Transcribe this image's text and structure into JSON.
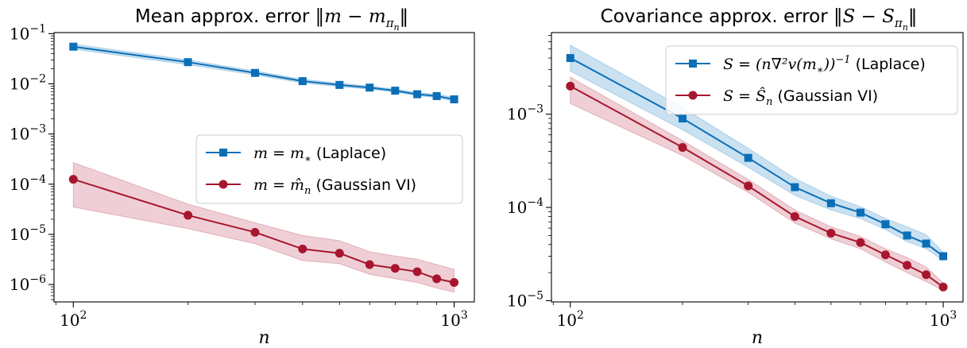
{
  "chart_data": [
    {
      "type": "line",
      "title_prefix": "Mean approx. error",
      "title_math": "‖m − m",
      "title_sub": "π",
      "title_subsub": "n",
      "title_close": "‖",
      "xlabel": "n",
      "xscale": "log",
      "yscale": "log",
      "xlim": [
        89,
        1130
      ],
      "ylim": [
        4.5e-07,
        0.105
      ],
      "x_tick_labels": [
        {
          "base": "10",
          "exp": "2"
        },
        {
          "base": "10",
          "exp": "3"
        }
      ],
      "y_tick_labels": [
        {
          "base": "10",
          "exp": "−6"
        },
        {
          "base": "10",
          "exp": "−5"
        },
        {
          "base": "10",
          "exp": "−4"
        },
        {
          "base": "10",
          "exp": "−3"
        },
        {
          "base": "10",
          "exp": "−2"
        },
        {
          "base": "10",
          "exp": "−1"
        }
      ],
      "legend_position": "center-right",
      "x": [
        100,
        200,
        300,
        400,
        500,
        600,
        700,
        800,
        900,
        1000
      ],
      "series": [
        {
          "name_math": "m = m",
          "name_sub": "∗",
          "name_text": " (Laplace)",
          "color": "#0b6fb8",
          "band_color": "#9ec8e8",
          "marker": "square",
          "values": [
            0.055,
            0.027,
            0.0165,
            0.0113,
            0.0095,
            0.0084,
            0.0073,
            0.0062,
            0.0057,
            0.0049
          ],
          "lower": [
            0.049,
            0.024,
            0.015,
            0.0104,
            0.0088,
            0.0078,
            0.0068,
            0.0058,
            0.0053,
            0.0045
          ],
          "upper": [
            0.062,
            0.03,
            0.018,
            0.0123,
            0.0103,
            0.009,
            0.0078,
            0.0067,
            0.0062,
            0.0054
          ]
        },
        {
          "name_math": "m = m̂",
          "name_sub": "n",
          "name_text": " (Gaussian VI)",
          "color": "#a7162e",
          "band_color": "#e2a8b2",
          "marker": "circle",
          "values": [
            0.000125,
            2.4e-05,
            1.1e-05,
            5.1e-06,
            4.2e-06,
            2.5e-06,
            2.1e-06,
            1.8e-06,
            1.3e-06,
            1.1e-06
          ],
          "lower": [
            3.5e-05,
            1.3e-05,
            6.5e-06,
            3e-06,
            2.6e-06,
            1.6e-06,
            1.3e-06,
            1.1e-06,
            8.5e-07,
            7e-07
          ],
          "upper": [
            0.00027,
            4e-05,
            1.7e-05,
            9.5e-06,
            7.5e-06,
            4.5e-06,
            3.7e-06,
            3.2e-06,
            2.5e-06,
            2e-06
          ]
        }
      ]
    },
    {
      "type": "line",
      "title_prefix": "Covariance approx. error",
      "title_math": "‖S − S",
      "title_sub": "π",
      "title_subsub": "n",
      "title_close": "‖",
      "xlabel": "n",
      "xscale": "log",
      "yscale": "log",
      "xlim": [
        89,
        1130
      ],
      "ylim": [
        9.7e-06,
        0.0075
      ],
      "x_tick_labels": [
        {
          "base": "10",
          "exp": "2"
        },
        {
          "base": "10",
          "exp": "3"
        }
      ],
      "y_tick_labels": [
        {
          "base": "10",
          "exp": "−5"
        },
        {
          "base": "10",
          "exp": "−4"
        },
        {
          "base": "10",
          "exp": "−3"
        }
      ],
      "legend_position": "top-right",
      "x": [
        100,
        200,
        300,
        400,
        500,
        600,
        700,
        800,
        900,
        1000
      ],
      "series": [
        {
          "name_math": "S = (n∇²v(m",
          "name_sub": "∗",
          "name_math_close": "))",
          "name_sup": "−1",
          "name_text": " (Laplace)",
          "color": "#0b6fb8",
          "band_color": "#9ec8e8",
          "marker": "square",
          "values": [
            0.004,
            0.0009,
            0.00034,
            0.000165,
            0.000111,
            8.8e-05,
            6.6e-05,
            5e-05,
            4.1e-05,
            3e-05
          ],
          "lower": [
            0.0029,
            0.00068,
            0.00027,
            0.000135,
            9.4e-05,
            7.6e-05,
            5.8e-05,
            4.3e-05,
            3.6e-05,
            2.7e-05
          ],
          "upper": [
            0.0055,
            0.00118,
            0.00043,
            0.000205,
            0.000132,
            0.000102,
            7.6e-05,
            6.2e-05,
            5.1e-05,
            3.3e-05
          ]
        },
        {
          "name_math": "S = Ŝ",
          "name_sub": "n",
          "name_text": " (Gaussian VI)",
          "color": "#a7162e",
          "band_color": "#e2a8b2",
          "marker": "circle",
          "values": [
            0.002,
            0.00044,
            0.00017,
            8e-05,
            5.3e-05,
            4.2e-05,
            3.1e-05,
            2.4e-05,
            1.9e-05,
            1.4e-05
          ],
          "lower": [
            0.0013,
            0.00036,
            0.000145,
            6.8e-05,
            4.6e-05,
            3.6e-05,
            2.6e-05,
            2e-05,
            1.6e-05,
            1.28e-05
          ],
          "upper": [
            0.0025,
            0.00052,
            0.0002,
            9.4e-05,
            6.2e-05,
            4.9e-05,
            3.6e-05,
            2.9e-05,
            2.3e-05,
            1.55e-05
          ]
        }
      ]
    }
  ]
}
